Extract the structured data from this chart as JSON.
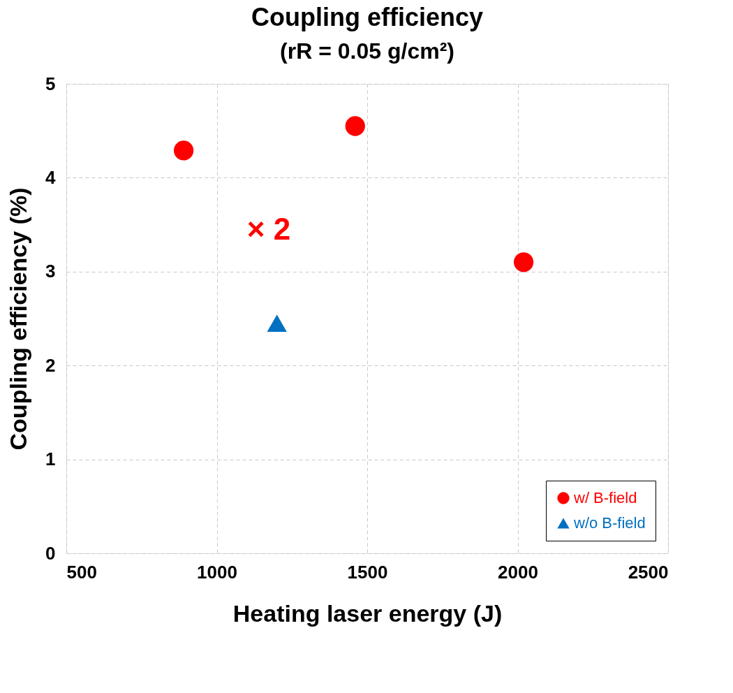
{
  "chart_data": {
    "type": "scatter",
    "title": "Coupling efficiency",
    "subtitle": "(rR  = 0.05 g/cm²)",
    "xlabel": "Heating laser energy (J)",
    "ylabel": "Coupling efficiency (%)",
    "series": [
      {
        "name": "w/ B-field",
        "color": "#ff0000",
        "marker": "circle",
        "x": [
          890,
          1460,
          2020
        ],
        "values": [
          4.29,
          4.55,
          3.1
        ]
      },
      {
        "name": "w/o B-field",
        "color": "#0070c0",
        "marker": "triangle",
        "x": [
          1200
        ],
        "values": [
          2.45
        ]
      }
    ],
    "xlim": [
      500,
      2500
    ],
    "xticks": [
      500,
      1000,
      1500,
      2000,
      2500
    ],
    "ylim": [
      0,
      5
    ],
    "yticks": [
      0,
      1,
      2,
      3,
      4,
      5
    ],
    "grid": true,
    "legend": "bottom right",
    "annotations": [
      "× 2"
    ]
  }
}
